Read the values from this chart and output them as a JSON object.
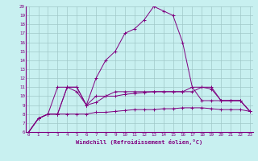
{
  "xlabel": "Windchill (Refroidissement éolien,°C)",
  "bg_color": "#c8f0f0",
  "line_color": "#800080",
  "grid_color": "#a0c8c8",
  "xmin": 0,
  "xmax": 23,
  "ymin": 6,
  "ymax": 20,
  "lines": [
    [
      6,
      7.5,
      8,
      8,
      8,
      8,
      8,
      8.2,
      8.2,
      8.3,
      8.4,
      8.5,
      8.5,
      8.5,
      8.6,
      8.6,
      8.7,
      8.7,
      8.7,
      8.6,
      8.5,
      8.5,
      8.5,
      8.3
    ],
    [
      6,
      7.5,
      8,
      8,
      11,
      11,
      9,
      9.3,
      10,
      10,
      10.2,
      10.3,
      10.4,
      10.5,
      10.5,
      10.5,
      10.5,
      10.5,
      11,
      10.8,
      9.5,
      9.5,
      9.5,
      8.3
    ],
    [
      6,
      7.5,
      8,
      11,
      11,
      10.5,
      9,
      12,
      14,
      15,
      17,
      17.5,
      18.5,
      20,
      19.5,
      19,
      16,
      11,
      11,
      11,
      9.5,
      9.5,
      9.5,
      8.3
    ],
    [
      6,
      7.5,
      8,
      8,
      11,
      11,
      9,
      10,
      10,
      10.5,
      10.5,
      10.5,
      10.5,
      10.5,
      10.5,
      10.5,
      10.5,
      11,
      9.5,
      9.5,
      9.5,
      9.5,
      9.5,
      8.3
    ]
  ]
}
